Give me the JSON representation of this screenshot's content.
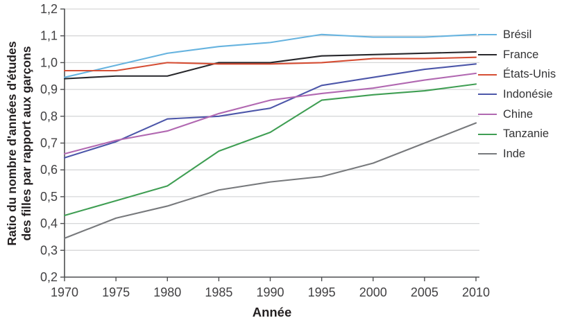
{
  "figure": {
    "x_title": "Année",
    "y_title_line1": "Ratio du nombre d'années d'études",
    "y_title_line2": "des filles par rapport aux garçons"
  },
  "colors": {
    "background": "#ffffff",
    "axis": "#4d4e50",
    "grid": "#d6d7d8",
    "tick_label": "#414042",
    "title": "#231f20",
    "legend_label": "#333335"
  },
  "chart_data": {
    "type": "line",
    "title": "",
    "xlabel": "Année",
    "ylabel": "Ratio du nombre d'années d'études des filles par rapport aux garçons",
    "x": [
      1970,
      1975,
      1980,
      1985,
      1990,
      1995,
      2000,
      2005,
      2010
    ],
    "x_tick_labels": [
      "1970",
      "1975",
      "1980",
      "1985",
      "1990",
      "1995",
      "2000",
      "2005",
      "2010"
    ],
    "ylim": [
      0.2,
      1.2
    ],
    "y_ticks": [
      0.2,
      0.3,
      0.4,
      0.5,
      0.6,
      0.7,
      0.8,
      0.9,
      1.0,
      1.1,
      1.2
    ],
    "y_tick_labels": [
      "0,2",
      "0,3",
      "0,4",
      "0,5",
      "0,6",
      "0,7",
      "0,8",
      "0,9",
      "1,0",
      "1,1",
      "1,2"
    ],
    "grid": "horizontal",
    "legend_position": "right",
    "series": [
      {
        "id": "bresil",
        "name": "Brésil",
        "color": "#66b3df",
        "values": [
          0.945,
          0.99,
          1.035,
          1.06,
          1.075,
          1.105,
          1.095,
          1.095,
          1.105
        ]
      },
      {
        "id": "france",
        "name": "France",
        "color": "#27272b",
        "values": [
          0.94,
          0.95,
          0.95,
          1.0,
          1.0,
          1.025,
          1.03,
          1.035,
          1.04
        ]
      },
      {
        "id": "etats-unis",
        "name": "États-Unis",
        "color": "#d54d33",
        "values": [
          0.97,
          0.97,
          1.0,
          0.995,
          0.995,
          1.0,
          1.015,
          1.015,
          1.02
        ]
      },
      {
        "id": "indonesie",
        "name": "Indonésie",
        "color": "#4c56a9",
        "values": [
          0.645,
          0.705,
          0.79,
          0.8,
          0.83,
          0.915,
          0.945,
          0.975,
          0.995
        ]
      },
      {
        "id": "chine",
        "name": "Chine",
        "color": "#b168b1",
        "values": [
          0.66,
          0.71,
          0.745,
          0.81,
          0.86,
          0.885,
          0.905,
          0.935,
          0.96
        ]
      },
      {
        "id": "tanzanie",
        "name": "Tanzanie",
        "color": "#3f9e53",
        "values": [
          0.43,
          0.485,
          0.54,
          0.67,
          0.74,
          0.86,
          0.88,
          0.895,
          0.92
        ]
      },
      {
        "id": "inde",
        "name": "Inde",
        "color": "#77797c",
        "values": [
          0.345,
          0.42,
          0.465,
          0.525,
          0.555,
          0.575,
          0.625,
          0.7,
          0.775
        ]
      }
    ]
  }
}
